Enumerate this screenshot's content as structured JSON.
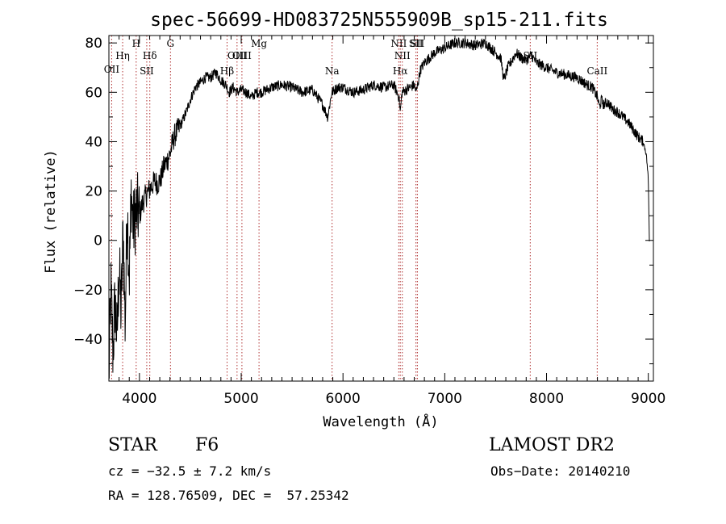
{
  "chart_data": {
    "type": "line",
    "title": "spec-56699-HD083725N555909B_sp15-211.fits",
    "xlabel": "Wavelength (Å)",
    "ylabel": "Flux (relative)",
    "xlim": [
      3700,
      9050
    ],
    "ylim": [
      -57,
      83
    ],
    "xticks": [
      4000,
      5000,
      6000,
      7000,
      8000,
      9000
    ],
    "yticks": [
      -40,
      -20,
      0,
      20,
      40,
      60,
      80
    ],
    "grid": false,
    "series": [
      {
        "x": [
          3700,
          3720,
          3740,
          3760,
          3780,
          3800,
          3820,
          3840,
          3860,
          3880,
          3900,
          3920,
          3940,
          3960,
          3980,
          4000,
          4030,
          4060,
          4090,
          4120,
          4150,
          4180,
          4210,
          4240,
          4270,
          4300,
          4340,
          4380,
          4420,
          4460,
          4500,
          4550,
          4600,
          4650,
          4700,
          4750,
          4800,
          4850,
          4880,
          4920,
          4960,
          5000,
          5050,
          5100,
          5150,
          5200,
          5300,
          5400,
          5500,
          5600,
          5700,
          5800,
          5850,
          5890,
          5920,
          5950,
          6000,
          6100,
          6200,
          6300,
          6400,
          6500,
          6550,
          6563,
          6580,
          6620,
          6660,
          6700,
          6720,
          6760,
          6800,
          6900,
          7000,
          7100,
          7200,
          7300,
          7400,
          7450,
          7500,
          7550,
          7580,
          7620,
          7660,
          7700,
          7750,
          7800,
          7850,
          7900,
          7950,
          8000,
          8100,
          8200,
          8300,
          8400,
          8450,
          8500,
          8520,
          8540,
          8560,
          8600,
          8650,
          8700,
          8750,
          8800,
          8850,
          8900,
          8950,
          8980,
          9000,
          9010
        ],
        "y": [
          -55,
          -20,
          -45,
          -25,
          -40,
          -10,
          -30,
          5,
          -35,
          15,
          -15,
          20,
          5,
          10,
          12,
          10,
          15,
          18,
          20,
          22,
          24,
          23,
          25,
          30,
          32,
          35,
          42,
          45,
          48,
          52,
          57,
          62,
          64,
          66,
          66,
          68,
          65,
          63,
          60,
          62,
          60,
          61,
          60,
          58,
          60,
          60,
          62,
          63,
          62,
          60,
          61,
          55,
          50,
          60,
          61,
          62,
          62,
          60,
          61,
          63,
          62,
          63,
          58,
          52,
          60,
          61,
          62,
          63,
          60,
          69,
          72,
          76,
          78,
          80,
          80,
          79,
          80,
          78,
          76,
          74,
          65,
          70,
          73,
          76,
          74,
          73,
          75,
          72,
          71,
          70,
          68,
          67,
          66,
          63,
          62,
          58,
          54,
          57,
          55,
          56,
          53,
          52,
          50,
          48,
          45,
          42,
          40,
          35,
          25,
          0
        ]
      }
    ],
    "line_markers": [
      {
        "label": "OII",
        "x": 3727
      },
      {
        "label": "Hη",
        "x": 3835
      },
      {
        "label": "H",
        "x": 3968
      },
      {
        "label": "Hδ",
        "x": 4102
      },
      {
        "label": "SII",
        "x": 4072
      },
      {
        "label": "G",
        "x": 4305
      },
      {
        "label": "Hβ",
        "x": 4861
      },
      {
        "label": "OIII",
        "x": 4959
      },
      {
        "label": "OIII",
        "x": 5007
      },
      {
        "label": "Mg",
        "x": 5175
      },
      {
        "label": "Na",
        "x": 5893
      },
      {
        "label": "NII",
        "x": 6548
      },
      {
        "label": "NII",
        "x": 6583
      },
      {
        "label": "Hα",
        "x": 6563
      },
      {
        "label": "SII",
        "x": 6717
      },
      {
        "label": "SII",
        "x": 6731
      },
      {
        "label": "SII",
        "x": 7840
      },
      {
        "label": "CaII",
        "x": 8498
      }
    ]
  },
  "info": {
    "class": "STAR",
    "subclass": "F6",
    "survey": "LAMOST DR2",
    "cz": "cz = −32.5 ± 7.2 km/s",
    "obs_date": "Obs−Date: 20140210",
    "coords": "RA = 128.76509, DEC =  57.25342"
  }
}
